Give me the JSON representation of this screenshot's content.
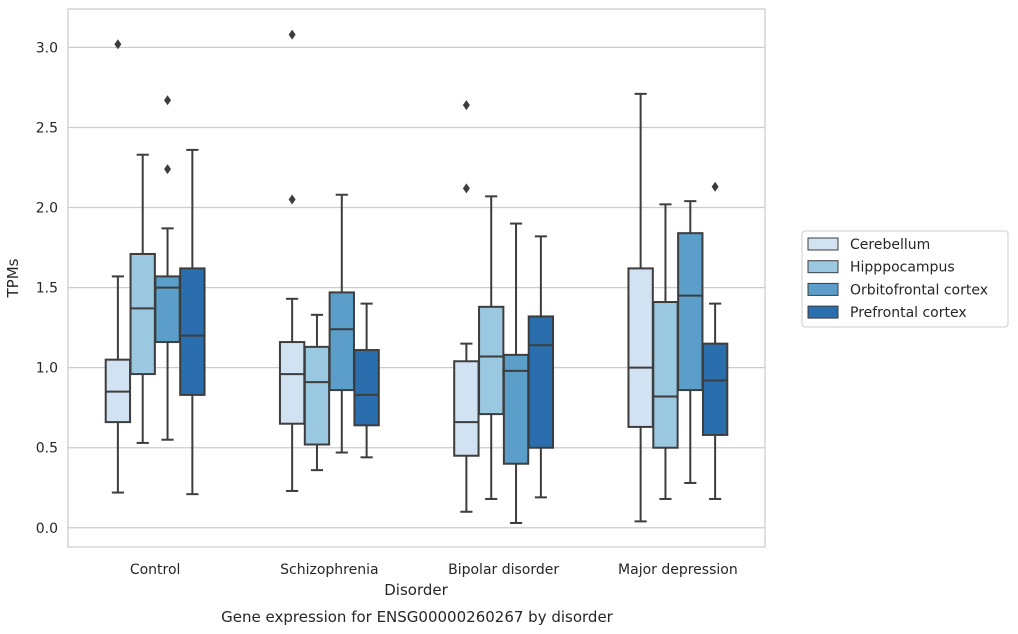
{
  "chart_data": {
    "type": "box",
    "caption": "Gene expression for ENSG00000260267 by disorder",
    "xlabel": "Disorder",
    "ylabel": "TPMs",
    "categories": [
      "Control",
      "Schizophrenia",
      "Bipolar disorder",
      "Major depression"
    ],
    "y_ticks": [
      "0.0",
      "0.5",
      "1.0",
      "1.5",
      "2.0",
      "2.5",
      "3.0"
    ],
    "ylim": [
      -0.12,
      3.24
    ],
    "grid": true,
    "legend_position": "right",
    "series": [
      {
        "name": "Cerebellum",
        "color": "#d1e2f2",
        "boxes": [
          {
            "whisker_low": 0.22,
            "q1": 0.66,
            "median": 0.85,
            "q3": 1.05,
            "whisker_high": 1.57,
            "outliers": [
              3.02
            ]
          },
          {
            "whisker_low": 0.23,
            "q1": 0.65,
            "median": 0.96,
            "q3": 1.16,
            "whisker_high": 1.43,
            "outliers": [
              3.08,
              2.05
            ]
          },
          {
            "whisker_low": 0.1,
            "q1": 0.45,
            "median": 0.66,
            "q3": 1.04,
            "whisker_high": 1.15,
            "outliers": [
              2.64,
              2.12
            ]
          },
          {
            "whisker_low": 0.04,
            "q1": 0.63,
            "median": 1.0,
            "q3": 1.62,
            "whisker_high": 2.71,
            "outliers": []
          }
        ]
      },
      {
        "name": "Hipppocampus",
        "color": "#9ac8e0",
        "boxes": [
          {
            "whisker_low": 0.53,
            "q1": 0.96,
            "median": 1.37,
            "q3": 1.71,
            "whisker_high": 2.33,
            "outliers": []
          },
          {
            "whisker_low": 0.36,
            "q1": 0.52,
            "median": 0.91,
            "q3": 1.13,
            "whisker_high": 1.33,
            "outliers": []
          },
          {
            "whisker_low": 0.18,
            "q1": 0.71,
            "median": 1.07,
            "q3": 1.38,
            "whisker_high": 2.07,
            "outliers": []
          },
          {
            "whisker_low": 0.18,
            "q1": 0.5,
            "median": 0.82,
            "q3": 1.41,
            "whisker_high": 2.02,
            "outliers": []
          }
        ]
      },
      {
        "name": "Orbitofrontal cortex",
        "color": "#5a9ec9",
        "boxes": [
          {
            "whisker_low": 0.55,
            "q1": 1.16,
            "median": 1.5,
            "q3": 1.57,
            "whisker_high": 1.87,
            "outliers": [
              2.67,
              2.24
            ]
          },
          {
            "whisker_low": 0.47,
            "q1": 0.86,
            "median": 1.24,
            "q3": 1.47,
            "whisker_high": 2.08,
            "outliers": []
          },
          {
            "whisker_low": 0.03,
            "q1": 0.4,
            "median": 0.98,
            "q3": 1.08,
            "whisker_high": 1.9,
            "outliers": []
          },
          {
            "whisker_low": 0.28,
            "q1": 0.86,
            "median": 1.45,
            "q3": 1.84,
            "whisker_high": 2.04,
            "outliers": []
          }
        ]
      },
      {
        "name": "Prefrontal cortex",
        "color": "#2a6ead",
        "boxes": [
          {
            "whisker_low": 0.21,
            "q1": 0.83,
            "median": 1.2,
            "q3": 1.62,
            "whisker_high": 2.36,
            "outliers": []
          },
          {
            "whisker_low": 0.44,
            "q1": 0.64,
            "median": 0.83,
            "q3": 1.11,
            "whisker_high": 1.4,
            "outliers": []
          },
          {
            "whisker_low": 0.19,
            "q1": 0.5,
            "median": 1.14,
            "q3": 1.32,
            "whisker_high": 1.82,
            "outliers": []
          },
          {
            "whisker_low": 0.18,
            "q1": 0.58,
            "median": 0.92,
            "q3": 1.15,
            "whisker_high": 1.4,
            "outliers": [
              2.13
            ]
          }
        ]
      }
    ]
  }
}
